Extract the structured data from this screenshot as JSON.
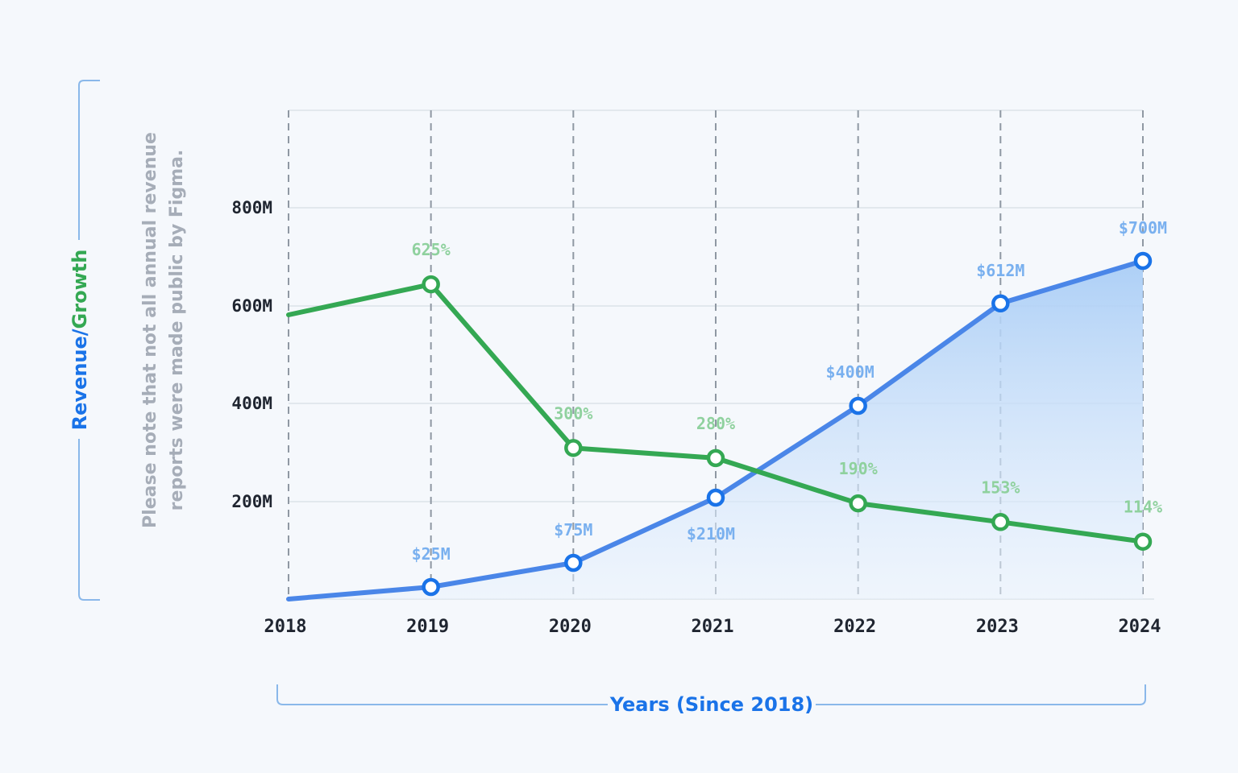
{
  "chart_data": {
    "type": "line",
    "x": [
      "2018",
      "2019",
      "2020",
      "2021",
      "2022",
      "2023",
      "2024"
    ],
    "y_ticks": [
      "200M",
      "400M",
      "600M",
      "800M"
    ],
    "series": [
      {
        "values": [
          0,
          25,
          75,
          210,
          400,
          612,
          700
        ],
        "labels": [
          null,
          "$25M",
          "$75M",
          "$210M",
          "$400M",
          "$612M",
          "$700M"
        ],
        "color": "#4a86e8",
        "fill": "area"
      },
      {
        "values": [
          null,
          625,
          300,
          280,
          190,
          153,
          114
        ],
        "labels": [
          null,
          "625%",
          "300%",
          "280%",
          "190%",
          "153%",
          "114%"
        ],
        "color": "#34a853"
      }
    ],
    "xlabel": "Years (Since 2018)",
    "ylabel_parts": [
      "Revenue",
      "/",
      "Growth"
    ],
    "note_lines": [
      "Please note that not all annual revenue",
      "reports were made public by Figma."
    ],
    "grid": true,
    "colors": {
      "revenue": "#4a86e8",
      "growth": "#34a853",
      "marker_stroke_revenue": "#1a73e8",
      "axis_title_blue": "#1a73e8",
      "bracket": "#8ab8ea",
      "background": "#f5f8fc"
    }
  }
}
